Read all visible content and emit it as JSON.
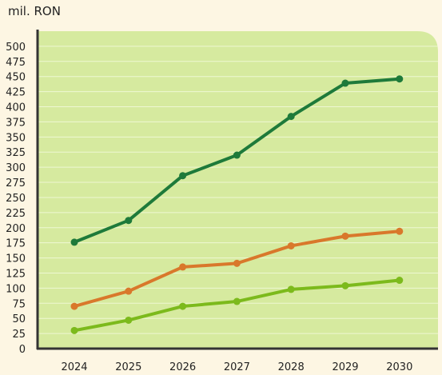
{
  "chart_data": {
    "type": "line",
    "ylabel": "mil. RON",
    "categories": [
      "2024",
      "2025",
      "2026",
      "2027",
      "2028",
      "2029",
      "2030"
    ],
    "y_ticks": [
      0,
      25,
      50,
      75,
      100,
      125,
      150,
      175,
      200,
      225,
      250,
      275,
      300,
      325,
      350,
      375,
      400,
      425,
      450,
      475,
      500
    ],
    "ylim": [
      0,
      525
    ],
    "grid": true,
    "legend": "none",
    "series": [
      {
        "color": "#1e7a3a",
        "values": [
          176,
          212,
          286,
          320,
          384,
          439,
          446
        ]
      },
      {
        "color": "#d9782b",
        "values": [
          70,
          95,
          135,
          141,
          170,
          186,
          194
        ]
      },
      {
        "color": "#7cba1c",
        "values": [
          30,
          47,
          70,
          78,
          98,
          104,
          113
        ]
      }
    ],
    "colors": {
      "page_background": "#fdf6e3",
      "plot_background": "#d6ea9f",
      "grid": "#eef7d2",
      "axis": "#333333"
    }
  }
}
